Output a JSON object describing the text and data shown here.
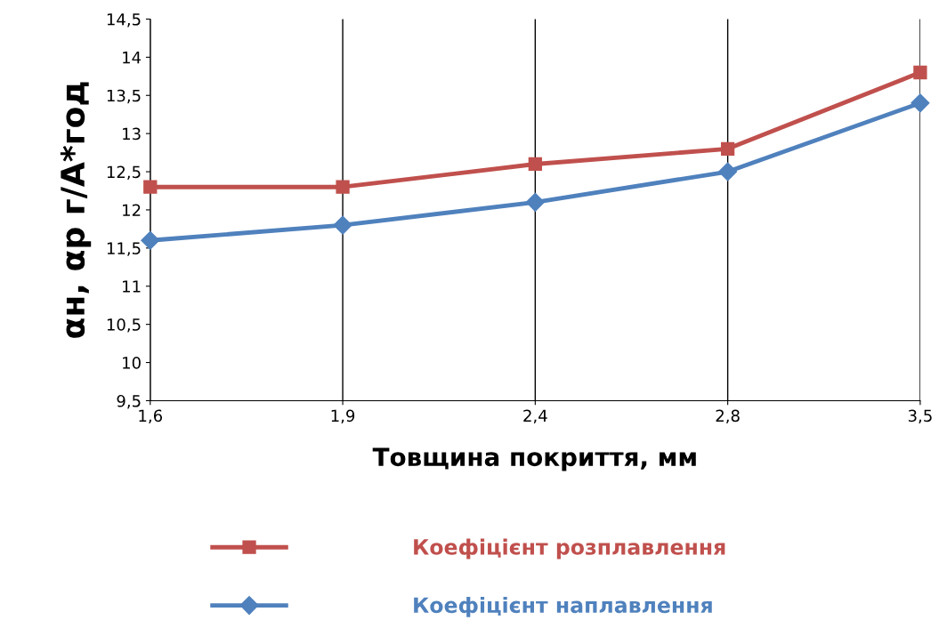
{
  "chart_data": {
    "type": "line",
    "xlabel": "Товщина покриття, мм",
    "ylabel": "αн, αр г/А*год",
    "categories": [
      "1,6",
      "1,9",
      "2,4",
      "2,8",
      "3,5"
    ],
    "series": [
      {
        "name": "Коефіцієнт розплавлення",
        "color": "#c0504d",
        "marker": "square",
        "values": [
          12.3,
          12.3,
          12.6,
          12.8,
          13.8
        ]
      },
      {
        "name": "Коефіцієнт наплавлення",
        "color": "#4f81bd",
        "marker": "diamond",
        "values": [
          11.6,
          11.8,
          12.1,
          12.5,
          13.4
        ]
      }
    ],
    "ylim": [
      9.5,
      14.5
    ],
    "yticks": [
      {
        "value": 9.5,
        "label": "9,5"
      },
      10,
      {
        "value": 10.5,
        "label": "10,5"
      },
      11,
      {
        "value": 11.5,
        "label": "11,5"
      },
      12,
      {
        "value": 12.5,
        "label": "12,5"
      },
      13,
      {
        "value": 13.5,
        "label": "13,5"
      },
      14,
      {
        "value": 14.5,
        "label": "14,5"
      }
    ],
    "grid": "x",
    "legend": "bottom",
    "line_style": "solid"
  }
}
